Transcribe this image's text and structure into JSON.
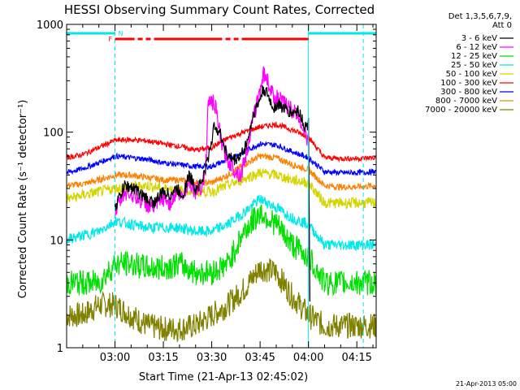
{
  "chart_data": {
    "type": "line",
    "title": "HESSI Observing Summary Count Rates, Corrected",
    "xlabel": "Start Time (21-Apr-13 02:45:02)",
    "ylabel": "Corrected Count Rate (s⁻¹ detector⁻¹)",
    "x_units": "minutes after 02:45:02",
    "xlim": [
      0,
      96
    ],
    "ylim": [
      1,
      1000
    ],
    "y_scale": "log",
    "x_ticks": [
      {
        "t": 15,
        "label": "03:00"
      },
      {
        "t": 30,
        "label": "03:15"
      },
      {
        "t": 45,
        "label": "03:30"
      },
      {
        "t": 60,
        "label": "03:45"
      },
      {
        "t": 75,
        "label": "04:00"
      },
      {
        "t": 90,
        "label": "04:15"
      }
    ],
    "y_ticks": [
      {
        "v": 1,
        "label": "1"
      },
      {
        "v": 10,
        "label": "10"
      },
      {
        "v": 100,
        "label": "100"
      },
      {
        "v": 1000,
        "label": "1000"
      }
    ],
    "legend": {
      "placement": "right",
      "header": [
        "Det 1,3,5,6,7,9,",
        "Att 0"
      ],
      "entries": [
        {
          "label": "3 - 6 keV",
          "color": "#000000"
        },
        {
          "label": "6 - 12 keV",
          "color": "#ff00ff"
        },
        {
          "label": "12 - 25 keV",
          "color": "#00e000"
        },
        {
          "label": "25 - 50 keV",
          "color": "#00e8e8"
        },
        {
          "label": "50 - 100 keV",
          "color": "#d4d400"
        },
        {
          "label": "100 - 300 keV",
          "color": "#ff0000"
        },
        {
          "label": "300 - 800 keV",
          "color": "#0000ff"
        },
        {
          "label": "800 - 7000 keV",
          "color": "#ff8000"
        },
        {
          "label": "7000 - 20000 keV",
          "color": "#808000"
        }
      ]
    },
    "series": [
      {
        "name": "3 - 6 keV",
        "color": "#000000",
        "t": [
          15,
          18,
          21,
          24,
          27,
          30,
          32,
          34,
          36,
          38,
          40,
          42,
          43,
          44,
          46,
          48,
          50,
          52,
          54,
          56,
          58,
          60,
          61,
          62,
          64,
          66,
          68,
          70,
          72,
          74,
          75,
          75.5
        ],
        "v": [
          20,
          32,
          30,
          25,
          22,
          28,
          26,
          30,
          26,
          40,
          30,
          35,
          45,
          60,
          120,
          90,
          60,
          55,
          60,
          80,
          150,
          200,
          250,
          230,
          170,
          180,
          160,
          150,
          160,
          110,
          120,
          2
        ]
      },
      {
        "name": "6 - 12 keV",
        "color": "#ff00ff",
        "t": [
          15,
          18,
          21,
          24,
          27,
          30,
          32,
          34,
          36,
          38,
          40,
          42,
          43,
          44,
          46,
          48,
          50,
          52,
          54,
          56,
          58,
          60,
          61,
          62,
          64,
          66,
          68,
          70,
          72,
          74,
          75,
          75.5
        ],
        "v": [
          18,
          28,
          26,
          22,
          20,
          24,
          22,
          28,
          25,
          36,
          28,
          32,
          40,
          200,
          180,
          80,
          55,
          45,
          40,
          70,
          140,
          250,
          350,
          320,
          220,
          200,
          180,
          160,
          140,
          100,
          80,
          2
        ]
      },
      {
        "name": "12 - 25 keV",
        "color": "#00e000",
        "t": [
          0,
          5,
          10,
          15,
          20,
          25,
          30,
          35,
          40,
          45,
          50,
          55,
          60,
          65,
          70,
          75,
          80,
          85,
          90,
          96
        ],
        "v": [
          4,
          4,
          4,
          6,
          6,
          5.5,
          5.5,
          6,
          5,
          5,
          6,
          12,
          18,
          14,
          9,
          7,
          4,
          4,
          4,
          4
        ]
      },
      {
        "name": "25 - 50 keV",
        "color": "#00e8e8",
        "t": [
          0,
          5,
          10,
          15,
          20,
          25,
          30,
          35,
          40,
          45,
          50,
          55,
          60,
          65,
          70,
          75,
          80,
          85,
          90,
          96
        ],
        "v": [
          10,
          11,
          12,
          15,
          14,
          13,
          13,
          13,
          12,
          12,
          14,
          18,
          24,
          20,
          16,
          14,
          9,
          9,
          9,
          9
        ]
      },
      {
        "name": "50 - 100 keV",
        "color": "#d4d400",
        "t": [
          0,
          5,
          10,
          15,
          20,
          25,
          30,
          35,
          40,
          45,
          50,
          55,
          60,
          65,
          70,
          75,
          80,
          85,
          90,
          96
        ],
        "v": [
          24,
          26,
          28,
          30,
          31,
          32,
          30,
          29,
          28,
          28,
          32,
          37,
          42,
          40,
          36,
          34,
          22,
          22,
          22,
          22
        ]
      },
      {
        "name": "100 - 300 keV",
        "color": "#ff0000",
        "t": [
          0,
          5,
          10,
          15,
          20,
          25,
          30,
          35,
          40,
          45,
          50,
          55,
          60,
          65,
          70,
          75,
          80,
          85,
          90,
          96
        ],
        "v": [
          58,
          62,
          72,
          84,
          85,
          83,
          78,
          74,
          68,
          72,
          88,
          100,
          112,
          118,
          105,
          90,
          58,
          57,
          57,
          58
        ]
      },
      {
        "name": "300 - 800 keV",
        "color": "#0000ff",
        "t": [
          0,
          5,
          10,
          15,
          20,
          25,
          30,
          35,
          40,
          45,
          50,
          55,
          60,
          65,
          70,
          75,
          80,
          85,
          90,
          96
        ],
        "v": [
          42,
          46,
          52,
          60,
          58,
          56,
          52,
          50,
          48,
          48,
          56,
          66,
          78,
          76,
          66,
          58,
          43,
          42,
          42,
          43
        ]
      },
      {
        "name": "800 - 7000 keV",
        "color": "#ff8000",
        "t": [
          0,
          5,
          10,
          15,
          20,
          25,
          30,
          35,
          40,
          45,
          50,
          55,
          60,
          65,
          70,
          75,
          80,
          85,
          90,
          96
        ],
        "v": [
          32,
          33,
          36,
          40,
          40,
          38,
          36,
          36,
          34,
          34,
          40,
          50,
          60,
          58,
          50,
          45,
          32,
          31,
          31,
          32
        ]
      },
      {
        "name": "7000 - 20000 keV",
        "color": "#808000",
        "t": [
          0,
          5,
          10,
          15,
          20,
          25,
          30,
          35,
          40,
          45,
          50,
          55,
          60,
          65,
          70,
          75,
          80,
          85,
          90,
          96
        ],
        "v": [
          2,
          2,
          2.5,
          2.5,
          2,
          1.6,
          1.5,
          1.5,
          1.6,
          2,
          2.5,
          3.5,
          5.5,
          5,
          3,
          2,
          1.6,
          1.6,
          1.6,
          1.6
        ]
      }
    ],
    "attenuator_flags": [
      {
        "label": "N",
        "color": "#00e8e8",
        "t_ranges": [
          [
            0,
            15
          ],
          [
            75,
            96
          ]
        ]
      },
      {
        "label": "F",
        "color": "#ff0000",
        "t_ranges": [
          [
            15,
            75
          ]
        ]
      }
    ],
    "markers": {
      "dashed": [
        15,
        92
      ],
      "solid": [
        75
      ]
    },
    "footer_date": "21-Apr-2013 05:00"
  }
}
